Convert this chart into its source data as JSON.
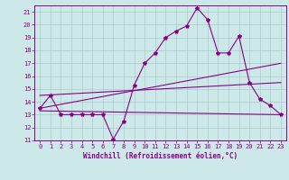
{
  "xlabel": "Windchill (Refroidissement éolien,°C)",
  "background_color": "#cce8e8",
  "grid_color": "#aacccc",
  "line_color": "#880088",
  "spine_color": "#880088",
  "xlim": [
    -0.5,
    23.5
  ],
  "ylim": [
    11,
    21.5
  ],
  "yticks": [
    11,
    12,
    13,
    14,
    15,
    16,
    17,
    18,
    19,
    20,
    21
  ],
  "xticks": [
    0,
    1,
    2,
    3,
    4,
    5,
    6,
    7,
    8,
    9,
    10,
    11,
    12,
    13,
    14,
    15,
    16,
    17,
    18,
    19,
    20,
    21,
    22,
    23
  ],
  "series1_x": [
    0,
    1,
    2,
    3,
    4,
    5,
    6,
    7,
    8,
    9,
    10,
    11,
    12,
    13,
    14,
    15,
    16,
    17,
    18,
    19,
    20,
    21,
    22,
    23
  ],
  "series1_y": [
    13.5,
    14.5,
    13.0,
    13.0,
    13.0,
    13.0,
    13.0,
    11.1,
    12.5,
    15.3,
    17.0,
    17.8,
    19.0,
    19.5,
    19.9,
    21.3,
    20.4,
    17.8,
    17.8,
    19.1,
    15.5,
    14.2,
    13.7,
    13.0
  ],
  "series2_x": [
    0,
    23
  ],
  "series2_y": [
    13.3,
    13.0
  ],
  "series3_x": [
    0,
    23
  ],
  "series3_y": [
    13.5,
    17.0
  ],
  "series4_x": [
    0,
    23
  ],
  "series4_y": [
    14.5,
    15.5
  ],
  "xlabel_fontsize": 5.5,
  "tick_fontsize": 5.0,
  "linewidth": 0.8,
  "markersize": 3.0
}
